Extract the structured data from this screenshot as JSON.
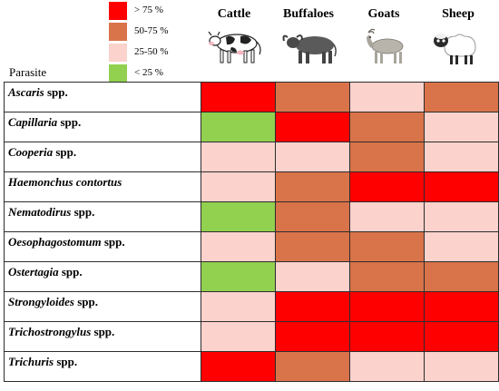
{
  "legend": [
    {
      "label": "> 75 %",
      "color": "#ff0000",
      "name": "legend-gt75"
    },
    {
      "label": "50-75 %",
      "color": "#d9734a",
      "name": "legend-50-75"
    },
    {
      "label": "25-50 %",
      "color": "#fcd2cc",
      "name": "legend-25-50"
    },
    {
      "label": "< 25 %",
      "color": "#92d050",
      "name": "legend-lt25"
    }
  ],
  "chart_data": {
    "type": "heatmap",
    "row_header": "Parasite",
    "columns": [
      "Cattle",
      "Buffaloes",
      "Goats",
      "Sheep"
    ],
    "rows": [
      {
        "genus": "Ascaris",
        "suffix": " spp.",
        "values": [
          "> 75 %",
          "50-75 %",
          "25-50 %",
          "50-75 %"
        ]
      },
      {
        "genus": "Capillaria",
        "suffix": " spp.",
        "values": [
          "< 25 %",
          "> 75 %",
          "50-75 %",
          "25-50 %"
        ]
      },
      {
        "genus": "Cooperia",
        "suffix": " spp.",
        "values": [
          "25-50 %",
          "25-50 %",
          "50-75 %",
          "25-50 %"
        ]
      },
      {
        "genus": "Haemonchus contortus",
        "suffix": "",
        "values": [
          "25-50 %",
          "50-75 %",
          "> 75 %",
          "> 75 %"
        ]
      },
      {
        "genus": "Nematodirus",
        "suffix": " spp.",
        "values": [
          "< 25 %",
          "50-75 %",
          "25-50 %",
          "25-50 %"
        ]
      },
      {
        "genus": "Oesophagostomum",
        "suffix": " spp.",
        "values": [
          "25-50 %",
          "50-75 %",
          "50-75 %",
          "25-50 %"
        ]
      },
      {
        "genus": "Ostertagia",
        "suffix": " spp.",
        "values": [
          "< 25 %",
          "25-50 %",
          "50-75 %",
          "50-75 %"
        ]
      },
      {
        "genus": "Strongyloides",
        "suffix": " spp.",
        "values": [
          "25-50 %",
          "> 75 %",
          "> 75 %",
          "> 75 %"
        ]
      },
      {
        "genus": "Trichostrongylus",
        "suffix": " spp.",
        "values": [
          "25-50 %",
          "> 75 %",
          "> 75 %",
          "> 75 %"
        ]
      },
      {
        "genus": "Trichuris",
        "suffix": " spp.",
        "values": [
          "> 75 %",
          "50-75 %",
          "25-50 %",
          "25-50 %"
        ]
      }
    ]
  }
}
